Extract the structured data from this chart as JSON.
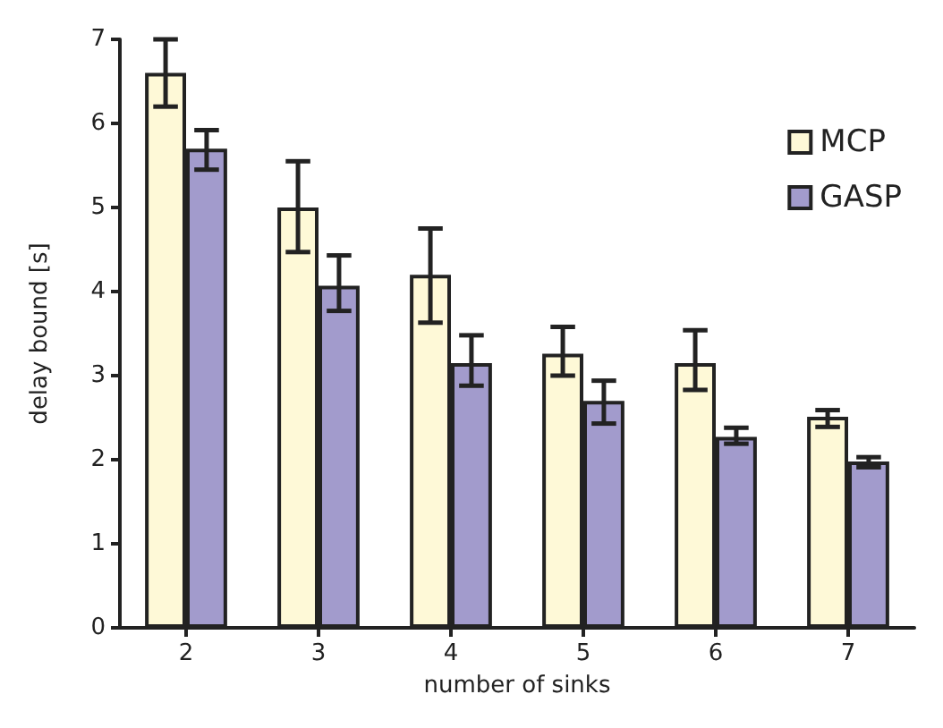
{
  "chart_data": {
    "type": "bar",
    "xlabel": "number of sinks",
    "ylabel": "delay bound [s]",
    "categories": [
      "2",
      "3",
      "4",
      "5",
      "6",
      "7"
    ],
    "series": [
      {
        "name": "MCP",
        "color": "#fef9d7",
        "values": [
          6.6,
          5.0,
          4.2,
          3.26,
          3.15,
          2.51
        ],
        "errors": [
          [
            6.2,
            7.0
          ],
          [
            4.47,
            5.55
          ],
          [
            3.63,
            4.75
          ],
          [
            3.0,
            3.58
          ],
          [
            2.83,
            3.54
          ],
          [
            2.39,
            2.59
          ]
        ]
      },
      {
        "name": "GASP",
        "color": "#a29bcc",
        "values": [
          5.7,
          4.07,
          3.15,
          2.7,
          2.27,
          1.98
        ],
        "errors": [
          [
            5.45,
            5.92
          ],
          [
            3.77,
            4.43
          ],
          [
            2.88,
            3.48
          ],
          [
            2.43,
            2.94
          ],
          [
            2.19,
            2.38
          ],
          [
            1.91,
            2.03
          ]
        ]
      }
    ],
    "ylim": [
      0,
      7
    ],
    "yticks": [
      0,
      1,
      2,
      3,
      4,
      5,
      6,
      7
    ],
    "grid": false,
    "legend": "top right"
  }
}
